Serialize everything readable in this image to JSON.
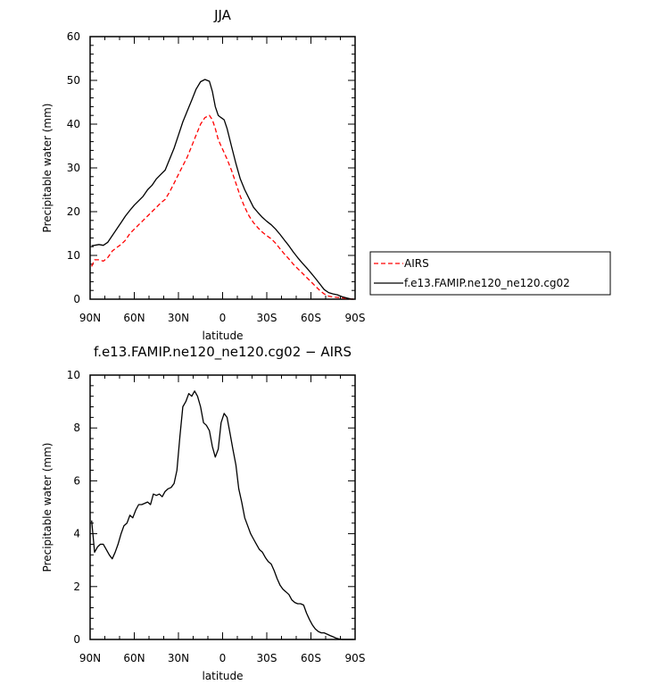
{
  "chart_data": [
    {
      "type": "line",
      "title": "JJA",
      "xlabel": "latitude",
      "ylabel": "Precipitable water (mm)",
      "xlim": [
        90,
        -90
      ],
      "ylim": [
        0,
        60
      ],
      "xticks": [
        90,
        60,
        30,
        0,
        -30,
        -60,
        -90
      ],
      "xticklabels": [
        "90N",
        "60N",
        "30N",
        "0",
        "30S",
        "60S",
        "90S"
      ],
      "yticks": [
        0,
        10,
        20,
        30,
        40,
        50,
        60
      ],
      "yticklabels": [
        "0",
        "10",
        "20",
        "30",
        "40",
        "50",
        "60"
      ],
      "legend": {
        "position": "right, outside plot"
      },
      "series": [
        {
          "name": "AIRS",
          "color": "#ff0000",
          "dash": "dashed",
          "x": [
            89,
            87,
            84,
            81,
            78,
            75,
            72,
            69,
            66,
            63,
            60,
            57,
            54,
            51,
            48,
            45,
            42,
            39,
            36,
            33,
            30,
            27,
            24,
            21,
            18,
            15,
            12,
            9,
            7,
            5,
            3,
            1,
            -1,
            -3,
            -6,
            -9,
            -12,
            -15,
            -18,
            -21,
            -24,
            -27,
            -30,
            -33,
            -36,
            -39,
            -42,
            -45,
            -48,
            -51,
            -54,
            -57,
            -60,
            -63,
            -66,
            -69,
            -72,
            -75,
            -78,
            -81,
            -84,
            -87,
            -89
          ],
          "y": [
            7.5,
            9,
            9,
            8.7,
            9.5,
            11,
            11.8,
            12.5,
            13.5,
            15,
            16,
            17,
            18,
            19,
            20,
            21,
            22,
            22.8,
            24.5,
            26.5,
            28.5,
            30.5,
            32.5,
            35,
            37.5,
            40,
            41.5,
            42,
            41,
            39,
            36.5,
            35,
            33.5,
            32,
            29.5,
            26.5,
            23.5,
            21,
            19,
            17.5,
            16.3,
            15.3,
            14.5,
            13.8,
            12.8,
            11.5,
            10.3,
            9.2,
            8,
            7,
            6,
            5,
            4,
            3,
            2,
            1.2,
            0.7,
            0.5,
            0.4,
            0.3,
            0.2,
            0.05,
            0
          ]
        },
        {
          "name": "f.e13.FAMIP.ne120_ne120.cg02",
          "color": "#000000",
          "dash": "solid",
          "x": [
            89,
            87,
            84,
            81,
            78,
            75,
            72,
            69,
            66,
            63,
            60,
            57,
            54,
            51,
            48,
            45,
            42,
            39,
            36,
            33,
            30,
            27,
            24,
            21,
            18,
            15,
            12,
            9,
            7,
            5,
            3,
            1,
            -1,
            -3,
            -6,
            -9,
            -12,
            -15,
            -18,
            -21,
            -24,
            -27,
            -30,
            -33,
            -36,
            -39,
            -42,
            -45,
            -48,
            -51,
            -54,
            -57,
            -60,
            -63,
            -66,
            -69,
            -72,
            -75,
            -78,
            -81,
            -84,
            -87,
            -89
          ],
          "y": [
            12.2,
            12.3,
            12.5,
            12.3,
            13,
            14.5,
            16,
            17.5,
            19,
            20.3,
            21.5,
            22.5,
            23.5,
            25,
            26,
            27.5,
            28.5,
            29.5,
            32,
            34.5,
            37.5,
            40.5,
            43,
            45.5,
            48,
            49.7,
            50.2,
            49.8,
            47.5,
            44,
            42,
            41.5,
            41,
            39,
            35,
            31,
            27.5,
            25,
            23,
            21,
            19.8,
            18.7,
            17.8,
            17,
            16,
            14.8,
            13.5,
            12.2,
            10.8,
            9.5,
            8.3,
            7.2,
            6,
            4.8,
            3.5,
            2.2,
            1.5,
            1.2,
            1,
            0.6,
            0.3,
            0.05,
            0
          ]
        }
      ]
    },
    {
      "type": "line",
      "title": "f.e13.FAMIP.ne120_ne120.cg02 − AIRS",
      "xlabel": "latitude",
      "ylabel": "Precipitable water (mm)",
      "xlim": [
        90,
        -90
      ],
      "ylim": [
        0,
        10
      ],
      "xticks": [
        90,
        60,
        30,
        0,
        -30,
        -60,
        -90
      ],
      "xticklabels": [
        "90N",
        "60N",
        "30N",
        "0",
        "30S",
        "60S",
        "90S"
      ],
      "yticks": [
        0,
        2,
        4,
        6,
        8,
        10
      ],
      "yticklabels": [
        "0",
        "2",
        "4",
        "6",
        "8",
        "10"
      ],
      "series": [
        {
          "color": "#000000",
          "dash": "solid",
          "x": [
            89,
            87,
            85,
            83,
            81,
            79,
            77,
            75,
            73,
            71,
            69,
            67,
            65,
            63,
            61,
            59,
            57,
            55,
            53,
            51,
            49,
            47,
            45,
            43,
            41,
            39,
            37,
            35,
            33,
            31,
            29,
            27,
            25,
            23,
            21,
            19,
            17,
            15,
            13,
            11,
            9,
            7,
            5,
            3,
            1,
            -1,
            -3,
            -5,
            -7,
            -9,
            -11,
            -13,
            -15,
            -17,
            -19,
            -21,
            -23,
            -25,
            -27,
            -29,
            -31,
            -33,
            -35,
            -37,
            -39,
            -41,
            -43,
            -45,
            -47,
            -49,
            -51,
            -53,
            -55,
            -57,
            -59,
            -61,
            -63,
            -65,
            -67,
            -69,
            -71,
            -73,
            -75,
            -77,
            -79,
            -81,
            -83,
            -85,
            -87,
            -89
          ],
          "y": [
            4.5,
            3.3,
            3.5,
            3.6,
            3.6,
            3.4,
            3.2,
            3.05,
            3.3,
            3.6,
            4.0,
            4.3,
            4.4,
            4.7,
            4.6,
            4.9,
            5.1,
            5.1,
            5.15,
            5.2,
            5.1,
            5.5,
            5.45,
            5.5,
            5.4,
            5.6,
            5.7,
            5.75,
            5.9,
            6.4,
            7.7,
            8.8,
            9.0,
            9.3,
            9.2,
            9.4,
            9.2,
            8.8,
            8.2,
            8.1,
            7.9,
            7.3,
            6.9,
            7.2,
            8.2,
            8.55,
            8.4,
            7.8,
            7.2,
            6.6,
            5.7,
            5.2,
            4.6,
            4.3,
            4.0,
            3.8,
            3.6,
            3.4,
            3.3,
            3.1,
            2.95,
            2.85,
            2.6,
            2.3,
            2.05,
            1.9,
            1.8,
            1.7,
            1.5,
            1.4,
            1.35,
            1.35,
            1.3,
            1.0,
            0.75,
            0.55,
            0.4,
            0.3,
            0.25,
            0.25,
            0.2,
            0.15,
            0.1,
            0.05,
            0.02,
            0,
            0,
            0,
            0,
            0
          ]
        }
      ]
    }
  ]
}
